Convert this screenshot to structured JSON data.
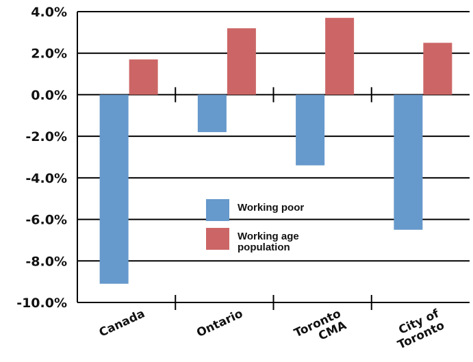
{
  "chart_data": {
    "type": "bar",
    "title": "",
    "xlabel": "",
    "ylabel": "",
    "categories": [
      {
        "lines": [
          "Canada"
        ]
      },
      {
        "lines": [
          "Ontario"
        ]
      },
      {
        "lines": [
          "Toronto",
          "CMA"
        ]
      },
      {
        "lines": [
          "City of",
          "Toronto"
        ]
      }
    ],
    "series": [
      {
        "name": "Working poor",
        "color": "#6699cc",
        "values": [
          -9.1,
          -1.8,
          -3.4,
          -6.5
        ]
      },
      {
        "name": "Working age population",
        "legend_lines": [
          "Working age",
          "population"
        ],
        "color": "#cc6666",
        "values": [
          1.7,
          3.2,
          3.7,
          2.5
        ]
      }
    ],
    "ylim": [
      -10,
      4
    ],
    "yticks": [
      4,
      2,
      0,
      -2,
      -4,
      -6,
      -8,
      -10
    ],
    "ytick_labels": [
      "4.0%",
      "2.0%",
      "0.0%",
      "-2.0%",
      "-4.0%",
      "-6.0%",
      "-8.0%",
      "-10.0%"
    ],
    "grid": true,
    "legend_position": "center"
  }
}
